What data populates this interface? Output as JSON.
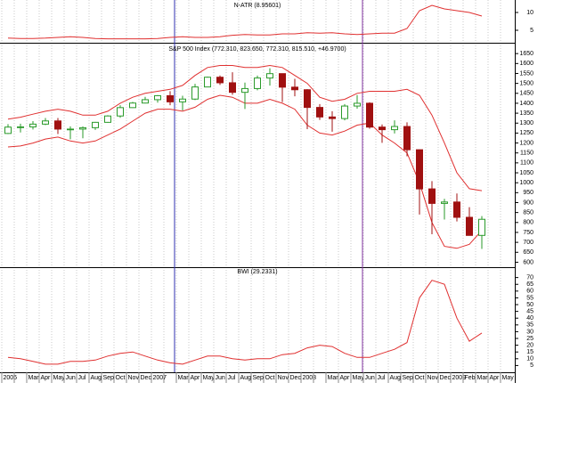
{
  "chart_data": [
    {
      "type": "line",
      "title": "N-ATR (8.95601)",
      "color": "#e03030",
      "values": [
        2.8,
        2.7,
        2.7,
        2.8,
        3.0,
        3.2,
        3.0,
        2.7,
        2.6,
        2.6,
        2.6,
        2.6,
        2.7,
        3.0,
        3.2,
        3.0,
        3.0,
        3.2,
        3.6,
        3.8,
        3.7,
        3.7,
        4.0,
        4.0,
        4.3,
        4.2,
        4.3,
        4.0,
        3.8,
        4.0,
        4.2,
        4.2,
        5.5,
        10.5,
        12.0,
        11.0,
        10.5,
        10.0,
        9.0,
        null,
        null
      ],
      "ylim": [
        1.5,
        13.5
      ],
      "yticks": [
        5,
        10
      ]
    },
    {
      "type": "candlestick",
      "title": "S&P 500 Index (772.310, 823.650, 772.310, 815.510, +46.9700)",
      "up_color": "#2a9a2a",
      "down_color": "#a01010",
      "open": [
        1248,
        1280,
        1281,
        1295,
        1311,
        1270,
        1270,
        1277,
        1304,
        1336,
        1378,
        1401,
        1418,
        1438,
        1407,
        1421,
        1482,
        1531,
        1503,
        1455,
        1474,
        1527,
        1549,
        1481,
        1468,
        1379,
        1331,
        1323,
        1386,
        1400,
        1280,
        1267,
        1283,
        1166,
        969,
        896,
        903,
        826,
        735,
        null,
        null
      ],
      "high": [
        1295,
        1297,
        1310,
        1326,
        1326,
        1284,
        1283,
        1306,
        1340,
        1390,
        1407,
        1432,
        1441,
        1461,
        1438,
        1498,
        1534,
        1540,
        1556,
        1504,
        1539,
        1576,
        1545,
        1523,
        1471,
        1396,
        1360,
        1396,
        1441,
        1405,
        1293,
        1314,
        1304,
        1167,
        1008,
        919,
        946,
        877,
        832,
        null,
        null
      ],
      "low": [
        1245,
        1253,
        1268,
        1290,
        1245,
        1219,
        1224,
        1266,
        1302,
        1327,
        1377,
        1399,
        1403,
        1390,
        1364,
        1416,
        1482,
        1492,
        1443,
        1371,
        1465,
        1489,
        1406,
        1435,
        1270,
        1316,
        1257,
        1314,
        1373,
        1272,
        1201,
        1248,
        1133,
        840,
        741,
        815,
        805,
        735,
        667,
        null,
        null
      ],
      "close": [
        1280,
        1281,
        1295,
        1311,
        1270,
        1270,
        1277,
        1304,
        1336,
        1378,
        1401,
        1418,
        1438,
        1407,
        1421,
        1482,
        1531,
        1503,
        1455,
        1474,
        1527,
        1549,
        1481,
        1468,
        1379,
        1331,
        1323,
        1386,
        1400,
        1280,
        1267,
        1283,
        1166,
        969,
        896,
        903,
        826,
        735,
        816,
        null,
        null
      ],
      "series": [
        {
          "color": "#e03030",
          "values": [
            1320,
            1330,
            1345,
            1360,
            1370,
            1360,
            1340,
            1340,
            1360,
            1400,
            1430,
            1450,
            1460,
            1470,
            1490,
            1540,
            1580,
            1590,
            1590,
            1580,
            1580,
            1590,
            1580,
            1540,
            1500,
            1430,
            1410,
            1420,
            1450,
            1460,
            1460,
            1460,
            1470,
            1440,
            1340,
            1200,
            1050,
            970,
            960,
            null,
            null
          ]
        },
        {
          "color": "#e03030",
          "values": [
            1180,
            1185,
            1200,
            1220,
            1230,
            1210,
            1200,
            1210,
            1240,
            1270,
            1310,
            1350,
            1370,
            1370,
            1360,
            1380,
            1420,
            1440,
            1430,
            1400,
            1400,
            1420,
            1400,
            1370,
            1290,
            1250,
            1240,
            1260,
            1290,
            1300,
            1240,
            1200,
            1150,
            1000,
            800,
            680,
            670,
            690,
            760,
            null,
            null
          ]
        }
      ],
      "ylim": [
        575,
        1700
      ],
      "yticks": [
        600,
        650,
        700,
        750,
        800,
        850,
        900,
        950,
        1000,
        1050,
        1100,
        1150,
        1200,
        1250,
        1300,
        1350,
        1400,
        1450,
        1500,
        1550,
        1600,
        1650
      ]
    },
    {
      "type": "line",
      "title": "BWI (29.2331)",
      "color": "#e03030",
      "categories": [
        "2006",
        null,
        "Mar",
        "Apr",
        "May",
        "Jun",
        "Jul",
        "Aug",
        "Sep",
        "Oct",
        "Nov",
        "Dec",
        "2007",
        null,
        "Mar",
        "Apr",
        "May",
        "Jun",
        "Jul",
        "Aug",
        "Sep",
        "Oct",
        "Nov",
        "Dec",
        "2008",
        null,
        "Mar",
        "Apr",
        "May",
        "Jun",
        "Jul",
        "Aug",
        "Sep",
        "Oct",
        "Nov",
        "Dec",
        "2009",
        "Feb",
        "Mar",
        "Apr",
        "May"
      ],
      "values": [
        11,
        10,
        8,
        6,
        6,
        8,
        8,
        9,
        12,
        14,
        15,
        12,
        9,
        7,
        6,
        9,
        12,
        12,
        10,
        9,
        10,
        10,
        13,
        14,
        18,
        20,
        19,
        14,
        11,
        11,
        14,
        17,
        22,
        55,
        68,
        65,
        40,
        23,
        29,
        null,
        null
      ],
      "ylim": [
        0,
        77
      ],
      "yticks": [
        5,
        10,
        15,
        20,
        25,
        30,
        35,
        40,
        45,
        50,
        55,
        60,
        65,
        70
      ]
    }
  ]
}
